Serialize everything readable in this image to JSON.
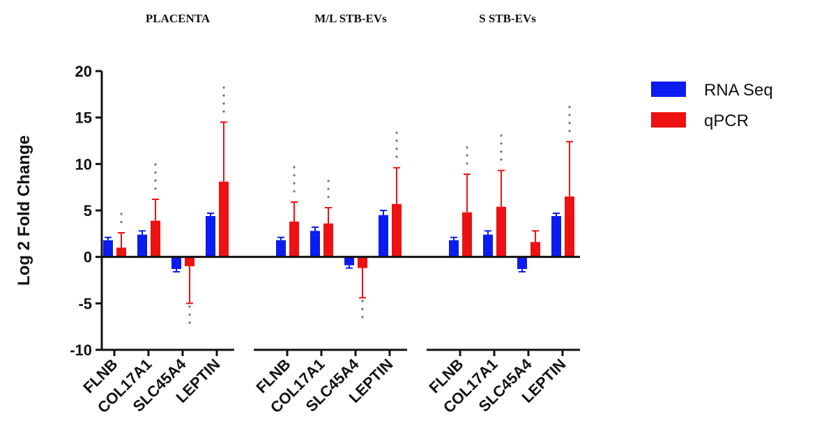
{
  "chart_data": {
    "type": "bar",
    "ylabel": "Log 2 Fold Change",
    "xlabel": "",
    "ylim": [
      -10,
      20
    ],
    "yticks": [
      -10,
      -5,
      0,
      5,
      10,
      15,
      20
    ],
    "legend_position": "top-right",
    "groups": [
      {
        "title": "PLACENTA",
        "categories": [
          "FLNB",
          "COL17A1",
          "SLC45A4",
          "LEPTIN"
        ],
        "series": [
          {
            "name": "RNA Seq",
            "values": [
              1.8,
              2.4,
              -1.3,
              4.4
            ],
            "errors": [
              0.3,
              0.4,
              0.3,
              0.3
            ]
          },
          {
            "name": "qPCR",
            "values": [
              1.0,
              3.9,
              -1.0,
              8.1
            ],
            "errors": [
              1.6,
              2.3,
              4.0,
              6.4
            ]
          }
        ],
        "significance": [
          "**",
          "****",
          "***",
          "****"
        ]
      },
      {
        "title": "M/L STB-EVs",
        "categories": [
          "FLNB",
          "COL17A1",
          "SLC45A4",
          "LEPTIN"
        ],
        "series": [
          {
            "name": "RNA Seq",
            "values": [
              1.8,
              2.8,
              -0.9,
              4.5
            ],
            "errors": [
              0.3,
              0.4,
              0.3,
              0.5
            ]
          },
          {
            "name": "qPCR",
            "values": [
              3.8,
              3.6,
              -1.2,
              5.7
            ],
            "errors": [
              2.1,
              1.7,
              3.2,
              3.9
            ]
          }
        ],
        "significance": [
          "****",
          "***",
          "***",
          "****"
        ]
      },
      {
        "title": "S STB-EVs",
        "categories": [
          "FLNB",
          "COL17A1",
          "SLC45A4",
          "LEPTIN"
        ],
        "series": [
          {
            "name": "RNA Seq",
            "values": [
              1.8,
              2.4,
              -1.3,
              4.4
            ],
            "errors": [
              0.3,
              0.4,
              0.3,
              0.3
            ]
          },
          {
            "name": "qPCR",
            "values": [
              4.8,
              5.4,
              1.6,
              6.5
            ],
            "errors": [
              4.1,
              3.9,
              1.2,
              5.9
            ]
          }
        ],
        "significance": [
          "***",
          "****",
          "",
          "****"
        ]
      }
    ],
    "colors": {
      "RNA Seq": "#0a1cf0",
      "qPCR": "#ee1111"
    }
  }
}
